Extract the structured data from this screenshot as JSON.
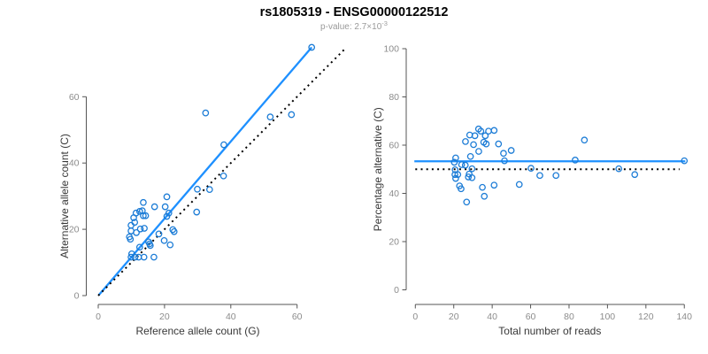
{
  "header": {
    "title": "rs1805319 - ENSG00000122512",
    "subtitle_prefix": "p-value: 2.7×10",
    "subtitle_exponent": "-3"
  },
  "colors": {
    "accent_line": "#1E90FF",
    "point_stroke": "#1C7CD6",
    "dotted_line": "#000000",
    "axis_line": "#555555",
    "tick_label": "#8C8C8C",
    "axis_title": "#383838",
    "title_color": "#000000",
    "subtitle_color": "#9A9A9A",
    "background": "#FFFFFF"
  },
  "chart_data": [
    {
      "type": "scatter",
      "name": "alt-vs-ref-allele-count",
      "xlabel": "Reference allele count (G)",
      "ylabel": "Alternative allele count (C)",
      "xticks": [
        0,
        20,
        40,
        60
      ],
      "yticks": [
        0,
        20,
        40,
        60
      ],
      "xlim": [
        0,
        74
      ],
      "ylim": [
        0,
        75
      ],
      "grid": false,
      "marker": "open-circle",
      "points": [
        [
          9.4,
          17.7
        ],
        [
          9.7,
          17.0
        ],
        [
          9.9,
          19.5
        ],
        [
          9.9,
          21.2
        ],
        [
          10.7,
          23.5
        ],
        [
          11.0,
          22.1
        ],
        [
          11.4,
          24.9
        ],
        [
          11.5,
          19.0
        ],
        [
          12.5,
          25.4
        ],
        [
          12.7,
          20.1
        ],
        [
          13.3,
          25.6
        ],
        [
          13.6,
          28.1
        ],
        [
          13.6,
          24.1
        ],
        [
          14.3,
          24.1
        ],
        [
          13.9,
          20.3
        ],
        [
          12.5,
          14.6
        ],
        [
          15.2,
          16.2
        ],
        [
          15.5,
          15.6
        ],
        [
          15.7,
          15.1
        ],
        [
          9.9,
          11.6
        ],
        [
          10.1,
          12.6
        ],
        [
          11.1,
          11.6
        ],
        [
          12.2,
          11.6
        ],
        [
          13.8,
          11.6
        ],
        [
          16.8,
          11.6
        ],
        [
          17.0,
          26.8
        ],
        [
          18.3,
          18.6
        ],
        [
          19.9,
          16.6
        ],
        [
          20.2,
          26.8
        ],
        [
          20.7,
          29.8
        ],
        [
          20.7,
          23.9
        ],
        [
          21.3,
          24.9
        ],
        [
          21.7,
          15.3
        ],
        [
          22.5,
          19.9
        ],
        [
          22.9,
          19.3
        ],
        [
          29.7,
          25.2
        ],
        [
          29.9,
          32.1
        ],
        [
          33.6,
          32.0
        ],
        [
          37.8,
          36.1
        ],
        [
          37.9,
          45.5
        ],
        [
          32.4,
          55.1
        ],
        [
          51.9,
          53.9
        ],
        [
          58.3,
          54.6
        ],
        [
          64.4,
          74.9
        ]
      ],
      "lines": [
        {
          "style": "solid",
          "color_key": "accent_line",
          "label": "fitted-line",
          "x1": 0.2,
          "y1": 0.2,
          "x2": 64.4,
          "y2": 74.9
        },
        {
          "style": "dotted",
          "color_key": "dotted_line",
          "label": "identity-line",
          "x1": 0,
          "y1": 0,
          "x2": 74.2,
          "y2": 74.2
        }
      ]
    },
    {
      "type": "scatter",
      "name": "percentage-alternative-vs-total-reads",
      "xlabel": "Total number of reads",
      "ylabel": "Percentage alternative (C)",
      "xticks": [
        0,
        20,
        40,
        60,
        80,
        100,
        120,
        140
      ],
      "yticks": [
        0,
        20,
        40,
        60,
        80,
        100
      ],
      "xlim": [
        0,
        141
      ],
      "ylim": [
        0,
        100
      ],
      "grid": false,
      "marker": "open-circle",
      "points": [
        [
          20.3,
          52.9
        ],
        [
          20.7,
          49.8
        ],
        [
          21.0,
          54.7
        ],
        [
          20.6,
          47.8
        ],
        [
          21.0,
          46.2
        ],
        [
          22.1,
          47.8
        ],
        [
          23.0,
          43.1
        ],
        [
          23.8,
          41.9
        ],
        [
          24.1,
          51.9
        ],
        [
          26.0,
          51.7
        ],
        [
          26.1,
          61.5
        ],
        [
          26.7,
          36.4
        ],
        [
          27.6,
          46.8
        ],
        [
          28.0,
          48.0
        ],
        [
          28.3,
          64.2
        ],
        [
          28.7,
          55.3
        ],
        [
          29.5,
          50.2
        ],
        [
          29.5,
          46.5
        ],
        [
          30.3,
          60.2
        ],
        [
          31.0,
          63.9
        ],
        [
          32.9,
          66.7
        ],
        [
          33.0,
          57.4
        ],
        [
          34.1,
          65.8
        ],
        [
          34.9,
          42.5
        ],
        [
          35.6,
          61.2
        ],
        [
          35.9,
          38.8
        ],
        [
          36.4,
          63.9
        ],
        [
          36.9,
          60.5
        ],
        [
          38.1,
          65.8
        ],
        [
          41.0,
          66.1
        ],
        [
          41.0,
          43.4
        ],
        [
          43.3,
          60.5
        ],
        [
          45.9,
          56.6
        ],
        [
          46.4,
          53.5
        ],
        [
          49.9,
          57.8
        ],
        [
          54.1,
          43.7
        ],
        [
          60.2,
          50.4
        ],
        [
          64.8,
          47.4
        ],
        [
          73.2,
          47.4
        ],
        [
          83.2,
          53.8
        ],
        [
          88.0,
          62.1
        ],
        [
          105.9,
          50.2
        ],
        [
          114.2,
          47.8
        ],
        [
          140.0,
          53.5
        ]
      ],
      "lines": [
        {
          "style": "solid",
          "color_key": "accent_line",
          "label": "mean-percentage-line",
          "x1": -0.5,
          "y1": 53.3,
          "x2": 140.5,
          "y2": 53.3
        },
        {
          "style": "dotted",
          "color_key": "dotted_line",
          "label": "fifty-percent-line",
          "x1": 0,
          "y1": 50,
          "x2": 137.5,
          "y2": 50
        }
      ]
    }
  ]
}
